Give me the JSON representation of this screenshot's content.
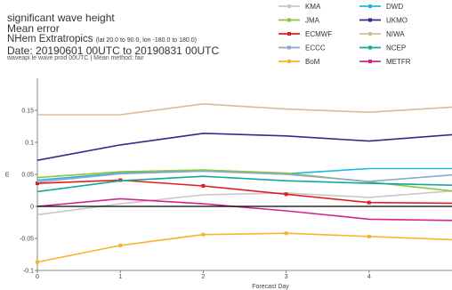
{
  "header": {
    "line1": "significant wave height",
    "line2": "Mean error",
    "line3_main": "NHem Extratropics",
    "line3_detail": "(lat 20.0 to 90.0, lon -180.0 to 180.0)",
    "line4": "Date: 20190601 00UTC to 20190831 00UTC",
    "line5": "waveapi le wave prod 00UTC | Mean method: fair"
  },
  "chart_data": {
    "type": "line",
    "title": "significant wave height",
    "xlabel": "Forecast Day",
    "ylabel": "m",
    "x": [
      0,
      1,
      2,
      3,
      4,
      5
    ],
    "xlim": [
      0,
      5
    ],
    "ylim": [
      -0.1,
      0.2
    ],
    "xticks": [
      0,
      1,
      2,
      3,
      4
    ],
    "yticks": [
      -0.1,
      -0.05,
      0,
      0.05,
      0.1,
      0.15
    ],
    "ytick_labels": [
      "-0.1",
      "-0.05",
      "0",
      "0.05",
      "0.1",
      "0.15"
    ],
    "zero_line": true,
    "grid": false,
    "legend_position": "top-right",
    "series": [
      {
        "name": "KMA",
        "color": "#c8c8c8",
        "marker": false,
        "values": [
          -0.013,
          0.004,
          0.018,
          0.021,
          0.014,
          0.024
        ]
      },
      {
        "name": "DWD",
        "color": "#1fb6e3",
        "marker": false,
        "values": [
          0.041,
          0.052,
          0.056,
          0.051,
          0.059,
          0.059
        ]
      },
      {
        "name": "JMA",
        "color": "#8cc63f",
        "marker": false,
        "values": [
          0.045,
          0.054,
          0.057,
          0.052,
          0.038,
          0.024
        ]
      },
      {
        "name": "UKMO",
        "color": "#2e2e8c",
        "marker": false,
        "values": [
          0.072,
          0.096,
          0.114,
          0.11,
          0.102,
          0.112
        ]
      },
      {
        "name": "ECMWF",
        "color": "#e02020",
        "marker": true,
        "values": [
          0.036,
          0.041,
          0.032,
          0.019,
          0.006,
          0.005
        ]
      },
      {
        "name": "NIWA",
        "color": "#d9bd9a",
        "marker": false,
        "values": [
          0.143,
          0.143,
          0.16,
          0.152,
          0.147,
          0.155
        ]
      },
      {
        "name": "ECCC",
        "color": "#8fa6cf",
        "marker": false,
        "values": [
          0.038,
          0.051,
          0.055,
          0.05,
          0.039,
          0.049
        ]
      },
      {
        "name": "NCEP",
        "color": "#13a89e",
        "marker": false,
        "values": [
          0.023,
          0.04,
          0.047,
          0.04,
          0.036,
          0.033
        ]
      },
      {
        "name": "BoM",
        "color": "#f7b52c",
        "marker": true,
        "values": [
          -0.087,
          -0.061,
          -0.044,
          -0.042,
          -0.047,
          -0.052
        ]
      },
      {
        "name": "METFR",
        "color": "#d6248f",
        "marker": false,
        "values": [
          0.0,
          0.012,
          0.004,
          -0.007,
          -0.02,
          -0.022
        ]
      }
    ]
  }
}
